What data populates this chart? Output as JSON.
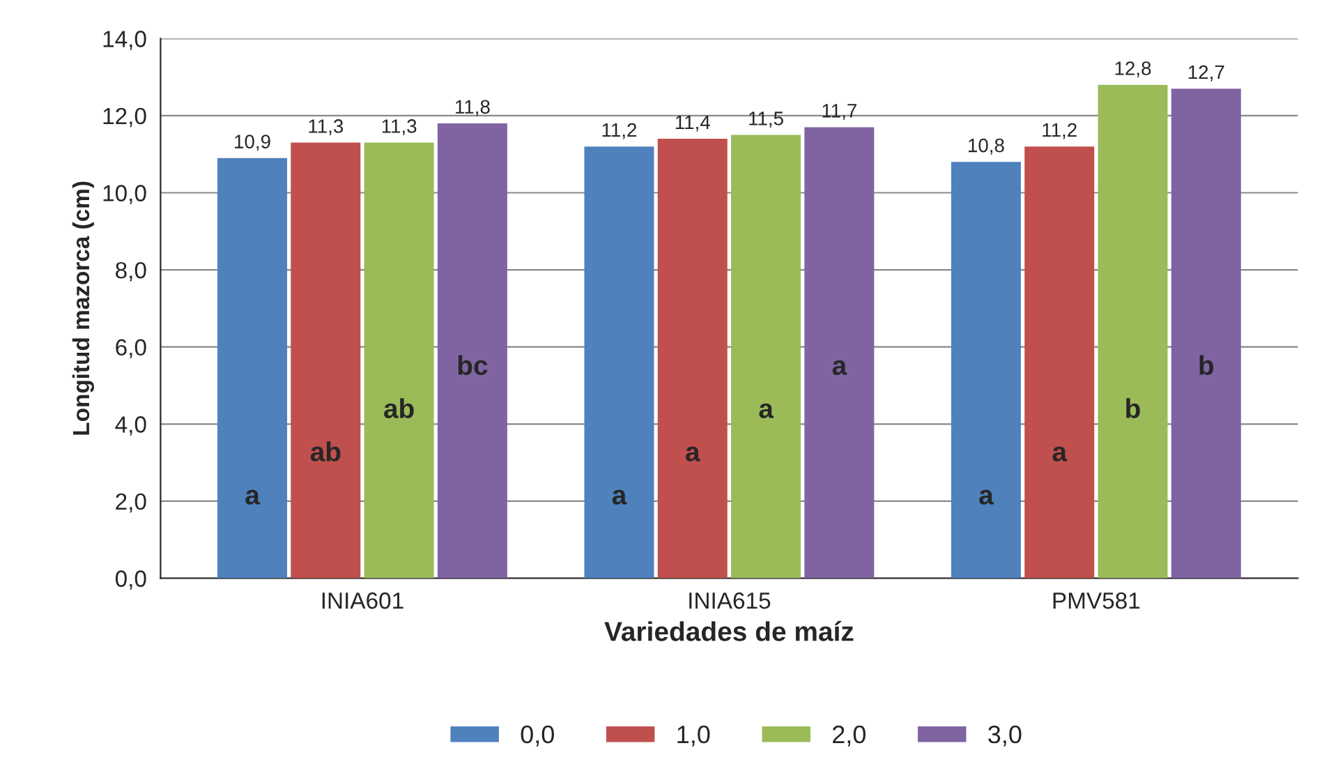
{
  "chart_data": {
    "type": "bar",
    "xlabel": "Variedades de maíz",
    "ylabel": "Longitud mazorca (cm)",
    "categories": [
      "INIA601",
      "INIA615",
      "PMV581"
    ],
    "series": [
      {
        "name": "0,0",
        "color": "#4f81bd",
        "values": [
          10.9,
          11.2,
          10.8
        ],
        "value_labels": [
          "10,9",
          "11,2",
          "10,8"
        ]
      },
      {
        "name": "1,0",
        "color": "#c0504d",
        "values": [
          11.3,
          11.4,
          11.2
        ],
        "value_labels": [
          "11,3",
          "11,4",
          "11,2"
        ]
      },
      {
        "name": "2,0",
        "color": "#9bbb59",
        "values": [
          11.3,
          11.5,
          12.8
        ],
        "value_labels": [
          "11,3",
          "11,5",
          "12,8"
        ]
      },
      {
        "name": "3,0",
        "color": "#8064a2",
        "values": [
          11.8,
          11.7,
          12.7
        ],
        "value_labels": [
          "11,8",
          "11,7",
          "12,7"
        ]
      }
    ],
    "ylim": [
      0,
      14
    ],
    "yticks": [
      {
        "value": 0,
        "label": "0,0"
      },
      {
        "value": 2,
        "label": "2,0"
      },
      {
        "value": 4,
        "label": "4,0"
      },
      {
        "value": 6,
        "label": "6,0"
      },
      {
        "value": 8,
        "label": "8,0"
      },
      {
        "value": 10,
        "label": "10,0"
      },
      {
        "value": 12,
        "label": "12,0"
      },
      {
        "value": 14,
        "label": "14,0"
      }
    ],
    "annotations": [
      "a",
      "ab",
      "ab",
      "bc",
      "a",
      "a",
      "a",
      "a",
      "a",
      "a",
      "b",
      "b"
    ],
    "grid": "y",
    "legend": "bottom"
  }
}
